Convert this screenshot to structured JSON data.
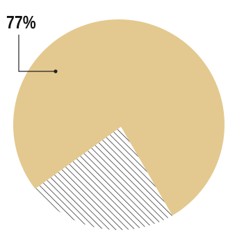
{
  "chart_data": {
    "type": "pie",
    "slices": [
      {
        "value": 77,
        "label": "77%",
        "color": "#e3c98f",
        "fill": "solid"
      },
      {
        "value": 23,
        "label": "",
        "color": "#222222",
        "fill": "hatched"
      }
    ]
  }
}
